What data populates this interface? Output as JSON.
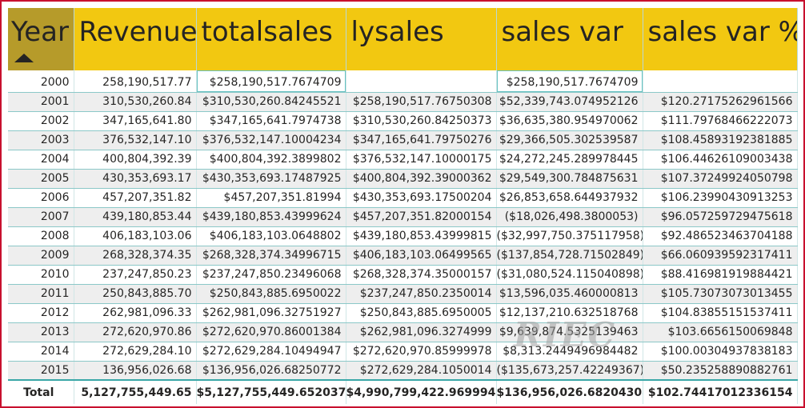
{
  "table": {
    "headers": [
      "Year",
      "Revenue",
      "totalsales",
      "lysales",
      "sales var",
      "sales var %"
    ],
    "rows": [
      [
        "2000",
        "258,190,517.77",
        "$258,190,517.7674709",
        "",
        "$258,190,517.7674709",
        ""
      ],
      [
        "2001",
        "310,530,260.84",
        "$310,530,260.84245521",
        "$258,190,517.76750308",
        "$52,339,743.074952126",
        "$120.27175262961566"
      ],
      [
        "2002",
        "347,165,641.80",
        "$347,165,641.7974738",
        "$310,530,260.84250373",
        "$36,635,380.954970062",
        "$111.79768466222073"
      ],
      [
        "2003",
        "376,532,147.10",
        "$376,532,147.10004234",
        "$347,165,641.79750276",
        "$29,366,505.302539587",
        "$108.45893192381885"
      ],
      [
        "2004",
        "400,804,392.39",
        "$400,804,392.3899802",
        "$376,532,147.10000175",
        "$24,272,245.289978445",
        "$106.44626109003438"
      ],
      [
        "2005",
        "430,353,693.17",
        "$430,353,693.17487925",
        "$400,804,392.39000362",
        "$29,549,300.784875631",
        "$107.37249924050798"
      ],
      [
        "2006",
        "457,207,351.82",
        "$457,207,351.81994",
        "$430,353,693.17500204",
        "$26,853,658.644937932",
        "$106.23990430913253"
      ],
      [
        "2007",
        "439,180,853.44",
        "$439,180,853.43999624",
        "$457,207,351.82000154",
        "($18,026,498.3800053)",
        "$96.057259729475618"
      ],
      [
        "2008",
        "406,183,103.06",
        "$406,183,103.0648802",
        "$439,180,853.43999815",
        "($32,997,750.375117958)",
        "$92.486523463704188"
      ],
      [
        "2009",
        "268,328,374.35",
        "$268,328,374.34996715",
        "$406,183,103.06499565",
        "($137,854,728.71502849)",
        "$66.060939592317411"
      ],
      [
        "2010",
        "237,247,850.23",
        "$237,247,850.23496068",
        "$268,328,374.35000157",
        "($31,080,524.115040898)",
        "$88.416981919884421"
      ],
      [
        "2011",
        "250,843,885.70",
        "$250,843,885.6950022",
        "$237,247,850.2350014",
        "$13,596,035.460000813",
        "$105.73073073013455"
      ],
      [
        "2012",
        "262,981,096.33",
        "$262,981,096.32751927",
        "$250,843,885.6950005",
        "$12,137,210.632518768",
        "$104.83855151537411"
      ],
      [
        "2013",
        "272,620,970.86",
        "$272,620,970.86001384",
        "$262,981,096.3274999",
        "$9,639,874.5325139463",
        "$103.6656150069848"
      ],
      [
        "2014",
        "272,629,284.10",
        "$272,629,284.10494947",
        "$272,620,970.85999978",
        "$8,313.2449496984482",
        "$100.00304937838183"
      ],
      [
        "2015",
        "136,956,026.68",
        "$136,956,026.68250772",
        "$272,629,284.1050014",
        "($135,673,257.42249367)",
        "$50.235258890882761"
      ]
    ],
    "total": [
      "Total",
      "5,127,755,449.65",
      "$5,127,755,449.6520376",
      "$4,990,799,422.9699945",
      "$136,956,026.68204308",
      "$102.74417012336154"
    ]
  },
  "watermark": "RIEC",
  "colors": {
    "header_bg": "#f2c811",
    "sorted_header_bg": "#b69b2a",
    "frame_border": "#c8102e",
    "row_alt": "#eeeeee"
  },
  "sort": {
    "column": "Year",
    "direction": "ascending",
    "icon": "sort-ascending-icon"
  }
}
